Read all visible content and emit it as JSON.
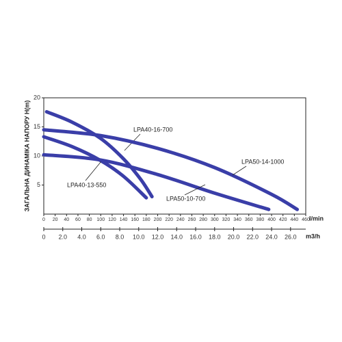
{
  "chart_data": {
    "type": "line",
    "y_label": "ЗАГАЛЬНА ДИНАМІКА НАПОРУ H(m)",
    "x_label": "l/min",
    "x2_label": "m3/h",
    "xlim": [
      0,
      460
    ],
    "xticks": [
      0,
      20,
      40,
      60,
      80,
      100,
      120,
      140,
      160,
      180,
      200,
      220,
      240,
      260,
      280,
      300,
      320,
      340,
      360,
      380,
      400,
      420,
      440,
      460
    ],
    "x2lim": [
      0,
      27.6
    ],
    "x2ticks": [
      0,
      {
        "value": 2,
        "label": "2.0"
      },
      {
        "value": 4,
        "label": "4.0"
      },
      {
        "value": 6,
        "label": "6.0"
      },
      {
        "value": 8,
        "label": "8.0"
      },
      {
        "value": 10,
        "label": "10.0"
      },
      {
        "value": 12,
        "label": "12.0"
      },
      {
        "value": 14,
        "label": "14.0"
      },
      {
        "value": 16,
        "label": "16.0"
      },
      {
        "value": 18,
        "label": "18.0"
      },
      {
        "value": 20,
        "label": "20.0"
      },
      {
        "value": 22,
        "label": "22.0"
      },
      {
        "value": 24,
        "label": "24.0"
      },
      {
        "value": 26,
        "label": "26.0"
      }
    ],
    "ylim": [
      0,
      20
    ],
    "yticks": [
      5,
      10,
      15,
      20
    ],
    "series": [
      {
        "name": "LPA40-16-700",
        "color": "#3a3ea8",
        "x": [
          5,
          50,
          100,
          140,
          170,
          190
        ],
        "values": [
          17.6,
          15.8,
          13,
          9.5,
          6,
          3
        ]
      },
      {
        "name": "LPA40-13-550",
        "color": "#3a3ea8",
        "x": [
          0,
          50,
          100,
          140,
          180
        ],
        "values": [
          13.3,
          11.6,
          9.2,
          6.5,
          2.8
        ]
      },
      {
        "name": "LPA50-14-1000",
        "color": "#3a3ea8",
        "x": [
          0,
          100,
          200,
          300,
          400,
          445
        ],
        "values": [
          14.5,
          13.5,
          11.3,
          8,
          3.4,
          0.8
        ]
      },
      {
        "name": "LPA50-10-700",
        "color": "#3a3ea8",
        "x": [
          0,
          100,
          200,
          300,
          395
        ],
        "values": [
          10.2,
          9.3,
          6.8,
          3.6,
          0.8
        ]
      }
    ]
  }
}
